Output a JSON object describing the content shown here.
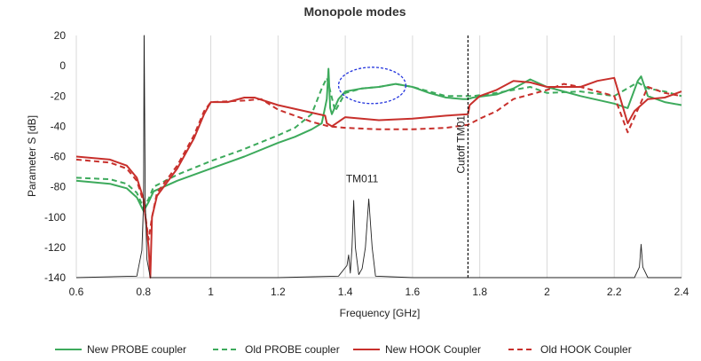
{
  "chart_data": {
    "type": "line",
    "title": "Monopole modes",
    "xlabel": "Frequency [GHz]",
    "ylabel": "Parameter S [dB]",
    "xlim": [
      0.6,
      2.4
    ],
    "ylim": [
      -140,
      20
    ],
    "xticks": [
      "0.6",
      "0.8",
      "1",
      "1.2",
      "1.4",
      "1.6",
      "1.8",
      "2",
      "2.2",
      "2.4"
    ],
    "yticks": [
      "20",
      "0",
      "-20",
      "-40",
      "-60",
      "-80",
      "-100",
      "-120",
      "-140"
    ],
    "grid": "vertical",
    "legend_position": "bottom",
    "colors": {
      "green": "#3daa5c",
      "red": "#c8302c",
      "black": "#222222",
      "ellipse": "#2233dd"
    },
    "annotations": [
      {
        "text": "TM011",
        "x": 1.45,
        "y": -77
      },
      {
        "text": "Cutoff TM01",
        "x": 1.755,
        "y": -52
      }
    ],
    "cutoff_x": 1.765,
    "highlight_ellipse": {
      "cx": 1.48,
      "cy": -13,
      "rx": 0.1,
      "ry": 12
    },
    "series": [
      {
        "name": "New PROBE coupler",
        "color": "#3daa5c",
        "dash": "solid",
        "points": [
          [
            0.6,
            -76
          ],
          [
            0.7,
            -78
          ],
          [
            0.75,
            -81
          ],
          [
            0.78,
            -87
          ],
          [
            0.8,
            -96
          ],
          [
            0.815,
            -90
          ],
          [
            0.83,
            -83
          ],
          [
            0.9,
            -76
          ],
          [
            1.0,
            -68
          ],
          [
            1.1,
            -60
          ],
          [
            1.2,
            -51
          ],
          [
            1.25,
            -47
          ],
          [
            1.3,
            -42
          ],
          [
            1.33,
            -38
          ],
          [
            1.345,
            -22
          ],
          [
            1.35,
            -2
          ],
          [
            1.355,
            -28
          ],
          [
            1.36,
            -32
          ],
          [
            1.38,
            -22
          ],
          [
            1.4,
            -17
          ],
          [
            1.45,
            -15
          ],
          [
            1.5,
            -14
          ],
          [
            1.55,
            -12
          ],
          [
            1.6,
            -14
          ],
          [
            1.65,
            -18
          ],
          [
            1.7,
            -21
          ],
          [
            1.75,
            -22
          ],
          [
            1.765,
            -22
          ],
          [
            1.78,
            -21
          ],
          [
            1.85,
            -19
          ],
          [
            1.9,
            -15
          ],
          [
            1.95,
            -9
          ],
          [
            2.0,
            -14
          ],
          [
            2.1,
            -20
          ],
          [
            2.2,
            -25
          ],
          [
            2.24,
            -28
          ],
          [
            2.27,
            -10
          ],
          [
            2.28,
            -7
          ],
          [
            2.3,
            -20
          ],
          [
            2.35,
            -24
          ],
          [
            2.4,
            -26
          ]
        ]
      },
      {
        "name": "Old PROBE coupler",
        "color": "#3daa5c",
        "dash": "dashed",
        "points": [
          [
            0.6,
            -74
          ],
          [
            0.7,
            -75
          ],
          [
            0.75,
            -78
          ],
          [
            0.78,
            -84
          ],
          [
            0.8,
            -94
          ],
          [
            0.815,
            -88
          ],
          [
            0.83,
            -80
          ],
          [
            0.9,
            -72
          ],
          [
            1.0,
            -63
          ],
          [
            1.1,
            -55
          ],
          [
            1.2,
            -46
          ],
          [
            1.25,
            -41
          ],
          [
            1.3,
            -32
          ],
          [
            1.33,
            -15
          ],
          [
            1.345,
            -8
          ],
          [
            1.35,
            -12
          ],
          [
            1.37,
            -30
          ],
          [
            1.4,
            -18
          ],
          [
            1.45,
            -15
          ],
          [
            1.5,
            -14
          ],
          [
            1.55,
            -12
          ],
          [
            1.6,
            -14
          ],
          [
            1.7,
            -20
          ],
          [
            1.78,
            -20
          ],
          [
            1.85,
            -18
          ],
          [
            1.95,
            -14
          ],
          [
            2.0,
            -18
          ],
          [
            2.1,
            -17
          ],
          [
            2.2,
            -20
          ],
          [
            2.27,
            -11
          ],
          [
            2.3,
            -15
          ],
          [
            2.35,
            -17
          ],
          [
            2.4,
            -20
          ]
        ]
      },
      {
        "name": "New HOOK Coupler",
        "color": "#c8302c",
        "dash": "solid",
        "points": [
          [
            0.6,
            -60
          ],
          [
            0.7,
            -62
          ],
          [
            0.75,
            -66
          ],
          [
            0.78,
            -74
          ],
          [
            0.8,
            -88
          ],
          [
            0.815,
            -120
          ],
          [
            0.82,
            -140
          ],
          [
            0.825,
            -100
          ],
          [
            0.84,
            -86
          ],
          [
            0.9,
            -68
          ],
          [
            0.95,
            -48
          ],
          [
            0.98,
            -32
          ],
          [
            1.0,
            -24
          ],
          [
            1.05,
            -24
          ],
          [
            1.1,
            -21
          ],
          [
            1.13,
            -21
          ],
          [
            1.2,
            -26
          ],
          [
            1.3,
            -31
          ],
          [
            1.34,
            -33
          ],
          [
            1.345,
            -38
          ],
          [
            1.36,
            -40
          ],
          [
            1.4,
            -34
          ],
          [
            1.5,
            -36
          ],
          [
            1.6,
            -35
          ],
          [
            1.7,
            -33
          ],
          [
            1.765,
            -32
          ],
          [
            1.77,
            -26
          ],
          [
            1.8,
            -20
          ],
          [
            1.85,
            -16
          ],
          [
            1.9,
            -10
          ],
          [
            1.95,
            -11
          ],
          [
            2.0,
            -14
          ],
          [
            2.1,
            -14
          ],
          [
            2.15,
            -10
          ],
          [
            2.2,
            -8
          ],
          [
            2.24,
            -38
          ],
          [
            2.26,
            -30
          ],
          [
            2.3,
            -22
          ],
          [
            2.35,
            -21
          ],
          [
            2.4,
            -17
          ]
        ]
      },
      {
        "name": "Old HOOK Coupler",
        "color": "#c8302c",
        "dash": "dashed",
        "points": [
          [
            0.6,
            -62
          ],
          [
            0.7,
            -64
          ],
          [
            0.75,
            -68
          ],
          [
            0.78,
            -76
          ],
          [
            0.8,
            -90
          ],
          [
            0.815,
            -115
          ],
          [
            0.825,
            -100
          ],
          [
            0.84,
            -84
          ],
          [
            0.9,
            -66
          ],
          [
            0.95,
            -46
          ],
          [
            0.98,
            -30
          ],
          [
            1.0,
            -24
          ],
          [
            1.1,
            -23
          ],
          [
            1.15,
            -22
          ],
          [
            1.2,
            -29
          ],
          [
            1.3,
            -37
          ],
          [
            1.35,
            -40
          ],
          [
            1.4,
            -41
          ],
          [
            1.5,
            -42
          ],
          [
            1.6,
            -42
          ],
          [
            1.7,
            -41
          ],
          [
            1.765,
            -39
          ],
          [
            1.8,
            -35
          ],
          [
            1.85,
            -30
          ],
          [
            1.9,
            -22
          ],
          [
            1.95,
            -19
          ],
          [
            2.0,
            -16
          ],
          [
            2.05,
            -12
          ],
          [
            2.1,
            -14
          ],
          [
            2.15,
            -17
          ],
          [
            2.2,
            -20
          ],
          [
            2.24,
            -44
          ],
          [
            2.26,
            -34
          ],
          [
            2.3,
            -14
          ],
          [
            2.35,
            -18
          ],
          [
            2.4,
            -20
          ]
        ]
      },
      {
        "name": "",
        "color": "#222222",
        "dash": "solid",
        "width": 0.9,
        "points": [
          [
            0.6,
            -140
          ],
          [
            0.78,
            -139
          ],
          [
            0.795,
            -122
          ],
          [
            0.8,
            -90
          ],
          [
            0.802,
            20
          ],
          [
            0.805,
            -90
          ],
          [
            0.81,
            -128
          ],
          [
            0.82,
            -140
          ],
          [
            1.2,
            -140
          ],
          [
            1.38,
            -139
          ],
          [
            1.405,
            -132
          ],
          [
            1.41,
            -125
          ],
          [
            1.415,
            -137
          ],
          [
            1.42,
            -120
          ],
          [
            1.425,
            -89
          ],
          [
            1.43,
            -120
          ],
          [
            1.44,
            -138
          ],
          [
            1.45,
            -134
          ],
          [
            1.46,
            -120
          ],
          [
            1.47,
            -88
          ],
          [
            1.48,
            -120
          ],
          [
            1.49,
            -139
          ],
          [
            1.6,
            -140
          ],
          [
            2.26,
            -140
          ],
          [
            2.275,
            -133
          ],
          [
            2.28,
            -118
          ],
          [
            2.285,
            -133
          ],
          [
            2.3,
            -140
          ],
          [
            2.4,
            -140
          ]
        ]
      }
    ]
  }
}
